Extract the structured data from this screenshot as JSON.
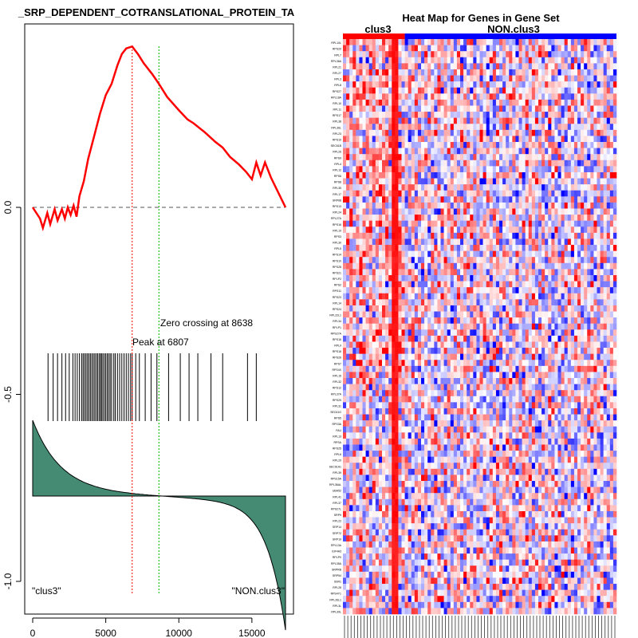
{
  "chart_data": [
    {
      "type": "line",
      "title": "HALLMARK_SRP_DEPENDENT_COTRANSLATIONAL_PROTEIN_TA",
      "title_visible": "_SRP_DEPENDENT_COTRANSLATIONAL_PROTEIN_TA",
      "xlabel": "",
      "ylabel": "",
      "xlim": [
        -1000,
        18300
      ],
      "ylim": [
        -1.08,
        0.47
      ],
      "xticks": [
        0,
        5000,
        10000,
        15000
      ],
      "xtick_labels": [
        "0",
        "5000",
        "10000",
        "15000"
      ],
      "yticks": [
        0.0,
        -0.5,
        -1.0
      ],
      "ytick_labels": [
        "0.0",
        "-0.5",
        "-1.0"
      ],
      "n_genes": 17300,
      "peak": {
        "x": 6807,
        "label": "Peak at 6807"
      },
      "zero_crossing": {
        "x": 8638,
        "label": "Zero crossing at 8638"
      },
      "series": [
        {
          "name": "Running enrichment score",
          "color": "#ff0000",
          "points": [
            [
              0,
              0.0
            ],
            [
              500,
              -0.03
            ],
            [
              700,
              -0.055
            ],
            [
              1000,
              -0.015
            ],
            [
              1200,
              -0.045
            ],
            [
              1500,
              -0.005
            ],
            [
              1700,
              -0.035
            ],
            [
              2000,
              -0.005
            ],
            [
              2200,
              -0.03
            ],
            [
              2400,
              0.0
            ],
            [
              2600,
              -0.02
            ],
            [
              2800,
              0.005
            ],
            [
              3000,
              -0.025
            ],
            [
              3200,
              0.03
            ],
            [
              3500,
              0.07
            ],
            [
              3800,
              0.13
            ],
            [
              4200,
              0.19
            ],
            [
              4600,
              0.25
            ],
            [
              5000,
              0.3
            ],
            [
              5400,
              0.33
            ],
            [
              5800,
              0.38
            ],
            [
              6100,
              0.41
            ],
            [
              6400,
              0.425
            ],
            [
              6807,
              0.43
            ],
            [
              7200,
              0.41
            ],
            [
              7600,
              0.385
            ],
            [
              8200,
              0.355
            ],
            [
              8638,
              0.33
            ],
            [
              9200,
              0.295
            ],
            [
              10000,
              0.26
            ],
            [
              10600,
              0.235
            ],
            [
              11000,
              0.225
            ],
            [
              11800,
              0.2
            ],
            [
              12500,
              0.175
            ],
            [
              13000,
              0.16
            ],
            [
              13500,
              0.135
            ],
            [
              14100,
              0.115
            ],
            [
              14600,
              0.095
            ],
            [
              15000,
              0.075
            ],
            [
              15300,
              0.12
            ],
            [
              15600,
              0.085
            ],
            [
              15900,
              0.12
            ],
            [
              16300,
              0.08
            ],
            [
              17300,
              0.0
            ]
          ]
        }
      ],
      "hits": [
        1050,
        1400,
        1700,
        2000,
        2250,
        2500,
        2750,
        2900,
        3050,
        3200,
        3350,
        3450,
        3550,
        3650,
        3750,
        3850,
        3950,
        4050,
        4150,
        4250,
        4350,
        4450,
        4550,
        4650,
        4700,
        4800,
        4900,
        5000,
        5100,
        5200,
        5300,
        5400,
        5550,
        5650,
        5800,
        5950,
        6100,
        6250,
        6400,
        6550,
        6700,
        6807,
        7050,
        7300,
        7700,
        8100,
        8500,
        9300,
        10100,
        10700,
        11300,
        12200,
        13000,
        14700,
        15300
      ],
      "ranked_metric": {
        "fill_color": "#458b74",
        "start": 0.05,
        "end": -0.4,
        "unit": "relative"
      },
      "annotations": {
        "left_class": "\"clus3\"",
        "right_class": "\"NON.clus3\""
      }
    },
    {
      "type": "heatmap",
      "title": "Heat Map for Genes in Gene Set",
      "class_labels": [
        "clus3",
        "NON.clus3"
      ],
      "class_colors": [
        "#ff0000",
        "#0000ff"
      ],
      "class_sizes": [
        19,
        65
      ],
      "n_rows": 95,
      "n_cols": 84,
      "row_labels": [
        "RPL10L",
        "RPS20",
        "RPL7",
        "RPL36A",
        "RPL21",
        "RPL27",
        "RPL3",
        "RPL8",
        "RPS27",
        "RPL18A",
        "RPL10",
        "RPL11",
        "RPS17",
        "RPL38",
        "RPL36L",
        "RPL23",
        "RPS19",
        "SEC61B",
        "RPL26",
        "RPS9",
        "RPL4",
        "RPL12",
        "RPS6",
        "RPS8",
        "RPL35",
        "RPL17",
        "SRP68",
        "RPS13",
        "RPL24",
        "RPL27A",
        "RPS16",
        "RPL19",
        "RPS3",
        "RPL30",
        "RPL5",
        "RPS14",
        "RPS10",
        "RPS28",
        "RPS21",
        "RPLP2",
        "RPS2",
        "RPS11",
        "RPS23",
        "RPL14",
        "RPS24",
        "RPL22L1",
        "RPL34",
        "RPLP1",
        "RPS27A",
        "RPS15",
        "RPL9",
        "RPS18",
        "RPS26",
        "RPS7",
        "RPS4X",
        "RPL15",
        "RPL32",
        "RPS12",
        "RPL37A",
        "RPS29",
        "RPL31",
        "SEC61G",
        "RPS5",
        "RPS3A",
        "FAU",
        "RPL13",
        "RPSA",
        "RPS25",
        "RPL6",
        "RPL29",
        "SEC61A1",
        "RPL39",
        "RPS15A",
        "RPL36AL",
        "UBA52",
        "RPL41",
        "RPL37",
        "RPS27L",
        "SRP9",
        "RPL22",
        "SRP14",
        "SRP72",
        "SRP19",
        "RPL13A",
        "EIF4A3",
        "RPLP0",
        "RPL35A",
        "SRPRB",
        "SRP54",
        "SSR1",
        "RPL28",
        "RPS4Y1",
        "RPL26L1",
        "RPL3L",
        "RPL39L"
      ],
      "color_low": "#0000ff",
      "color_mid": "#ffffff",
      "color_high": "#ff0000"
    }
  ]
}
